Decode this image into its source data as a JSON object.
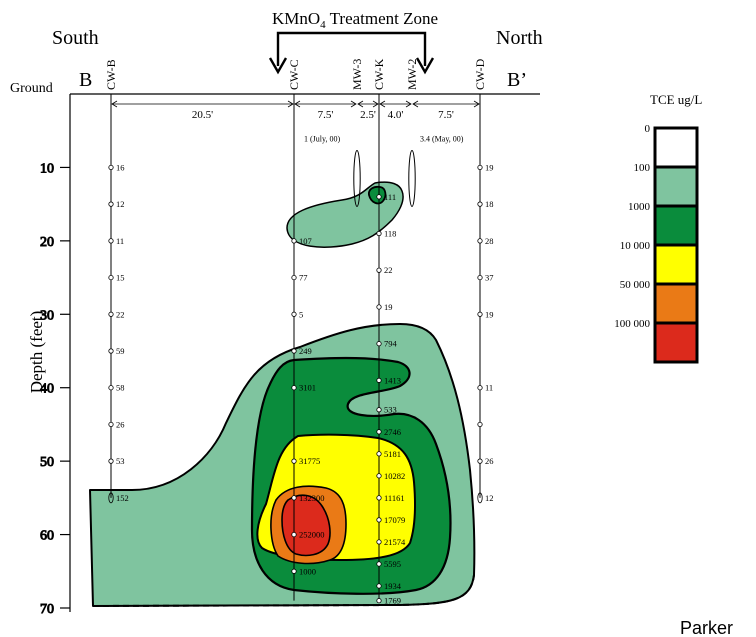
{
  "header": {
    "zone_title": "KMnO",
    "zone_title_sub": "4",
    "zone_title_rest": " Treatment Zone",
    "south": "South",
    "north": "North",
    "b": "B",
    "b_prime": "B’",
    "ground": "Ground",
    "ylabel": "Depth (feet)",
    "credit": "Parker"
  },
  "wells": [
    {
      "id": "cw-b",
      "label": "CW-B"
    },
    {
      "id": "cw-c",
      "label": "CW-C"
    },
    {
      "id": "mw-3",
      "label": "MW-3"
    },
    {
      "id": "cw-k",
      "label": "CW-K"
    },
    {
      "id": "mw-2",
      "label": "MW-2"
    },
    {
      "id": "cw-d",
      "label": "CW-D"
    }
  ],
  "spacings": [
    "20.5'",
    "7.5'",
    "2.5'",
    "4.0'",
    "7.5'"
  ],
  "injections": [
    {
      "well": "mw-3",
      "label": "1 (July, 00)"
    },
    {
      "well": "mw-2",
      "label": "3.4 (May, 00)"
    }
  ],
  "depth_axis": {
    "ticks": [
      10,
      20,
      30,
      40,
      50,
      60,
      70
    ],
    "min": 0,
    "max": 70,
    "unit": "feet"
  },
  "samples": {
    "cw-b": [
      {
        "d": 10,
        "v": "16"
      },
      {
        "d": 15,
        "v": "12"
      },
      {
        "d": 20,
        "v": "11"
      },
      {
        "d": 25,
        "v": "15"
      },
      {
        "d": 30,
        "v": "22"
      },
      {
        "d": 35,
        "v": "59"
      },
      {
        "d": 40,
        "v": "58"
      },
      {
        "d": 45,
        "v": "26"
      },
      {
        "d": 50,
        "v": "53"
      },
      {
        "d": 55,
        "v": "152"
      }
    ],
    "cw-c": [
      {
        "d": 20,
        "v": "107"
      },
      {
        "d": 25,
        "v": "77"
      },
      {
        "d": 30,
        "v": "5"
      },
      {
        "d": 35,
        "v": "249"
      },
      {
        "d": 40,
        "v": "3101"
      },
      {
        "d": 50,
        "v": "31775"
      },
      {
        "d": 55,
        "v": "132300"
      },
      {
        "d": 60,
        "v": "252000"
      },
      {
        "d": 65,
        "v": "1000"
      }
    ],
    "cw-k": [
      {
        "d": 14,
        "v": "111"
      },
      {
        "d": 19,
        "v": "118"
      },
      {
        "d": 24,
        "v": "22"
      },
      {
        "d": 29,
        "v": "19"
      },
      {
        "d": 34,
        "v": "794"
      },
      {
        "d": 39,
        "v": "1413"
      },
      {
        "d": 43,
        "v": "533"
      },
      {
        "d": 46,
        "v": "2746"
      },
      {
        "d": 49,
        "v": "5181"
      },
      {
        "d": 52,
        "v": "10282"
      },
      {
        "d": 55,
        "v": "11161"
      },
      {
        "d": 58,
        "v": "17079"
      },
      {
        "d": 61,
        "v": "21574"
      },
      {
        "d": 64,
        "v": "5595"
      },
      {
        "d": 67,
        "v": "1934"
      },
      {
        "d": 69,
        "v": "1769"
      }
    ],
    "cw-d": [
      {
        "d": 10,
        "v": "19"
      },
      {
        "d": 15,
        "v": "18"
      },
      {
        "d": 20,
        "v": "28"
      },
      {
        "d": 25,
        "v": "37"
      },
      {
        "d": 30,
        "v": "19"
      },
      {
        "d": 40,
        "v": "11"
      },
      {
        "d": 45,
        "v": ""
      },
      {
        "d": 50,
        "v": "26"
      },
      {
        "d": 55,
        "v": "12"
      }
    ]
  },
  "legend": {
    "title": "TCE ug/L",
    "labels": [
      "0",
      "100",
      "1000",
      "10 000",
      "50 000",
      "100 000"
    ],
    "colors": [
      "#ffffff",
      "#7fc49f",
      "#0a8c3c",
      "#ffff00",
      "#ea7a16",
      "#dc2a1c"
    ]
  }
}
